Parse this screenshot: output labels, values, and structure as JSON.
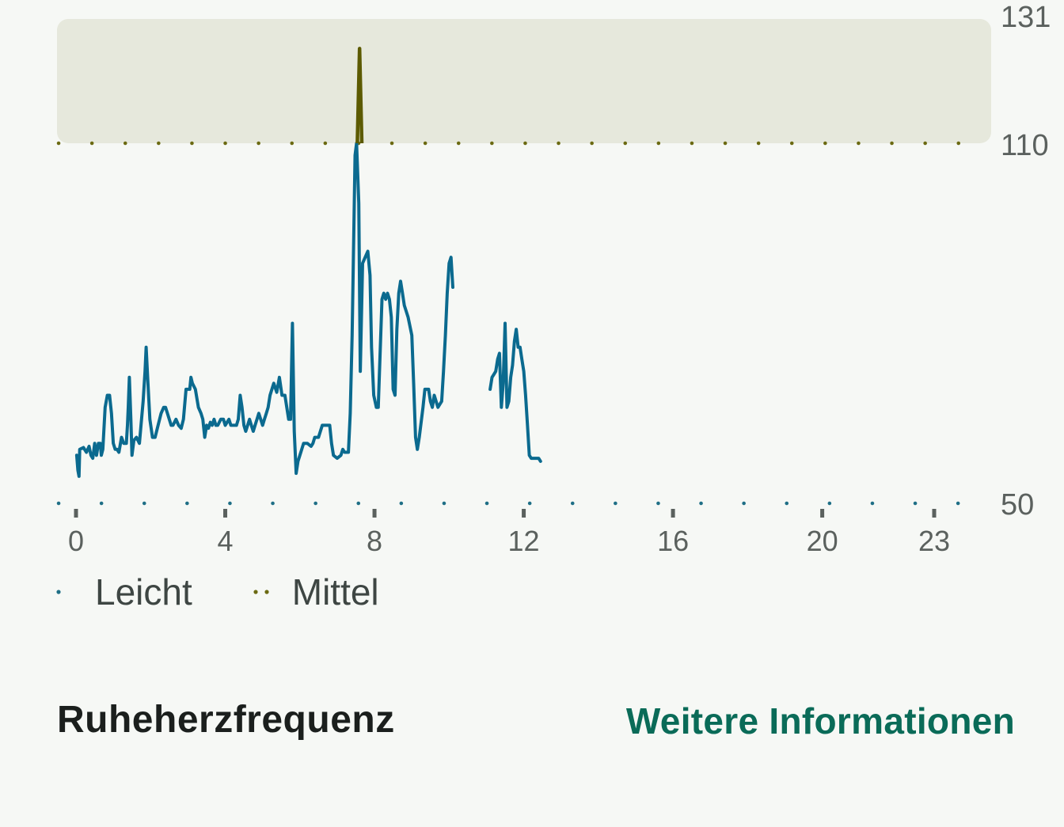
{
  "chart_data": {
    "type": "line",
    "xlim": [
      0,
      23
    ],
    "ylim": [
      50,
      131
    ],
    "x_ticks": [
      "0",
      "4",
      "8",
      "12",
      "16",
      "20",
      "23"
    ],
    "y_ticks": [
      "131",
      "110",
      "50"
    ],
    "zones": [
      {
        "name": "Leicht",
        "threshold": 50,
        "color": "#1f6f86"
      },
      {
        "name": "Mittel",
        "threshold": 110,
        "color": "#6b6a12"
      }
    ],
    "zone_band_color": "#e6e8dc",
    "line_color": "#0b6a8f",
    "peak_color": "#5c5a00",
    "series": [
      {
        "values": [
          [
            0.02,
            58
          ],
          [
            0.05,
            55.5
          ],
          [
            0.08,
            54.5
          ],
          [
            0.1,
            59
          ],
          [
            0.2,
            59.3
          ],
          [
            0.28,
            58.5
          ],
          [
            0.35,
            59.5
          ],
          [
            0.4,
            58
          ],
          [
            0.45,
            57.5
          ],
          [
            0.5,
            60
          ],
          [
            0.55,
            58
          ],
          [
            0.6,
            60
          ],
          [
            0.65,
            60
          ],
          [
            0.68,
            58
          ],
          [
            0.72,
            59
          ],
          [
            0.78,
            66
          ],
          [
            0.84,
            68
          ],
          [
            0.9,
            68
          ],
          [
            0.95,
            65
          ],
          [
            1.0,
            60
          ],
          [
            1.05,
            59
          ],
          [
            1.1,
            59
          ],
          [
            1.15,
            58.5
          ],
          [
            1.22,
            61
          ],
          [
            1.28,
            60
          ],
          [
            1.35,
            60
          ],
          [
            1.38,
            63
          ],
          [
            1.4,
            66
          ],
          [
            1.43,
            71
          ],
          [
            1.47,
            64
          ],
          [
            1.5,
            58
          ],
          [
            1.55,
            60.5
          ],
          [
            1.62,
            61
          ],
          [
            1.7,
            60
          ],
          [
            1.8,
            67
          ],
          [
            1.85,
            72
          ],
          [
            1.88,
            76
          ],
          [
            1.92,
            71
          ],
          [
            1.98,
            64
          ],
          [
            2.05,
            61
          ],
          [
            2.12,
            61
          ],
          [
            2.2,
            63
          ],
          [
            2.28,
            65
          ],
          [
            2.35,
            66
          ],
          [
            2.4,
            66
          ],
          [
            2.45,
            65
          ],
          [
            2.55,
            63
          ],
          [
            2.6,
            63
          ],
          [
            2.68,
            64
          ],
          [
            2.75,
            63
          ],
          [
            2.82,
            62.5
          ],
          [
            2.88,
            64
          ],
          [
            2.95,
            69
          ],
          [
            3.0,
            69
          ],
          [
            3.05,
            69
          ],
          [
            3.08,
            71
          ],
          [
            3.12,
            70
          ],
          [
            3.2,
            69
          ],
          [
            3.28,
            66
          ],
          [
            3.35,
            65
          ],
          [
            3.4,
            64
          ],
          [
            3.45,
            61
          ],
          [
            3.5,
            63
          ],
          [
            3.55,
            62.5
          ],
          [
            3.6,
            63.5
          ],
          [
            3.65,
            63
          ],
          [
            3.7,
            64
          ],
          [
            3.75,
            63
          ],
          [
            3.8,
            63
          ],
          [
            3.88,
            64
          ],
          [
            3.95,
            64
          ],
          [
            4.0,
            63
          ],
          [
            4.1,
            64
          ],
          [
            4.15,
            63
          ],
          [
            4.2,
            63
          ],
          [
            4.3,
            63
          ],
          [
            4.35,
            64
          ],
          [
            4.4,
            68
          ],
          [
            4.45,
            66
          ],
          [
            4.5,
            63
          ],
          [
            4.55,
            62
          ],
          [
            4.6,
            63
          ],
          [
            4.65,
            64
          ],
          [
            4.7,
            63
          ],
          [
            4.75,
            62
          ],
          [
            4.8,
            63
          ],
          [
            4.85,
            64
          ],
          [
            4.9,
            65
          ],
          [
            4.95,
            64
          ],
          [
            5.0,
            63
          ],
          [
            5.05,
            64
          ],
          [
            5.1,
            65
          ],
          [
            5.15,
            66
          ],
          [
            5.2,
            68
          ],
          [
            5.3,
            70
          ],
          [
            5.38,
            68.5
          ],
          [
            5.45,
            71
          ],
          [
            5.52,
            68
          ],
          [
            5.6,
            68
          ],
          [
            5.7,
            64
          ],
          [
            5.75,
            64
          ],
          [
            5.8,
            80
          ],
          [
            5.85,
            62
          ],
          [
            5.9,
            55
          ],
          [
            5.95,
            57
          ],
          [
            6.0,
            58
          ],
          [
            6.1,
            60
          ],
          [
            6.2,
            60
          ],
          [
            6.3,
            59.5
          ],
          [
            6.35,
            60
          ],
          [
            6.4,
            61
          ],
          [
            6.5,
            61
          ],
          [
            6.55,
            62
          ],
          [
            6.6,
            63
          ],
          [
            6.7,
            63
          ],
          [
            6.8,
            63
          ],
          [
            6.85,
            60
          ],
          [
            6.9,
            58
          ],
          [
            7.0,
            57.5
          ],
          [
            7.1,
            58
          ],
          [
            7.15,
            59
          ],
          [
            7.2,
            58.5
          ],
          [
            7.3,
            58.5
          ],
          [
            7.35,
            65
          ],
          [
            7.4,
            78
          ],
          [
            7.48,
            108
          ],
          [
            7.52,
            110
          ],
          [
            7.58,
            100
          ],
          [
            7.62,
            72
          ],
          [
            7.68,
            90
          ],
          [
            7.75,
            91
          ],
          [
            7.82,
            92
          ],
          [
            7.88,
            88
          ],
          [
            7.92,
            76
          ],
          [
            7.98,
            68
          ],
          [
            8.05,
            66
          ],
          [
            8.1,
            66
          ],
          [
            8.2,
            84
          ],
          [
            8.25,
            85
          ],
          [
            8.3,
            84
          ],
          [
            8.35,
            85
          ],
          [
            8.4,
            84
          ],
          [
            8.45,
            81
          ],
          [
            8.5,
            69
          ],
          [
            8.55,
            68
          ],
          [
            8.6,
            79
          ],
          [
            8.65,
            85
          ],
          [
            8.7,
            87
          ],
          [
            8.75,
            85
          ],
          [
            8.8,
            83
          ],
          [
            8.85,
            82
          ],
          [
            8.9,
            81
          ],
          [
            9.0,
            78
          ],
          [
            9.05,
            70
          ],
          [
            9.1,
            61
          ],
          [
            9.15,
            59
          ],
          [
            9.2,
            61
          ],
          [
            9.3,
            66
          ],
          [
            9.35,
            69
          ],
          [
            9.45,
            69
          ],
          [
            9.5,
            67
          ],
          [
            9.55,
            66
          ],
          [
            9.6,
            68
          ],
          [
            9.7,
            66
          ],
          [
            9.8,
            67
          ],
          [
            9.85,
            72
          ],
          [
            9.9,
            78
          ],
          [
            9.95,
            85
          ],
          [
            10.0,
            90
          ],
          [
            10.05,
            91
          ],
          [
            10.1,
            86
          ]
        ]
      },
      {
        "values": [
          [
            11.1,
            69
          ],
          [
            11.15,
            71
          ],
          [
            11.2,
            71.5
          ],
          [
            11.25,
            72
          ],
          [
            11.3,
            74
          ],
          [
            11.35,
            75
          ],
          [
            11.4,
            66
          ],
          [
            11.45,
            70
          ],
          [
            11.5,
            80
          ],
          [
            11.55,
            66
          ],
          [
            11.6,
            67
          ],
          [
            11.65,
            71
          ],
          [
            11.7,
            73
          ],
          [
            11.75,
            77
          ],
          [
            11.8,
            79
          ],
          [
            11.85,
            76
          ],
          [
            11.9,
            76
          ],
          [
            11.95,
            74
          ],
          [
            12.0,
            72
          ],
          [
            12.05,
            68
          ],
          [
            12.1,
            63
          ],
          [
            12.15,
            58
          ],
          [
            12.2,
            57.5
          ],
          [
            12.3,
            57.5
          ],
          [
            12.4,
            57.5
          ],
          [
            12.45,
            57
          ]
        ]
      }
    ],
    "peak": {
      "x": 7.6,
      "y": 126
    }
  },
  "legend": [
    {
      "label": "Leicht",
      "color": "#1f6f86"
    },
    {
      "label": "Mittel",
      "color": "#6b6a12"
    }
  ],
  "footer": {
    "title": "Ruheherzfrequenz",
    "link": "Weitere Informationen"
  }
}
